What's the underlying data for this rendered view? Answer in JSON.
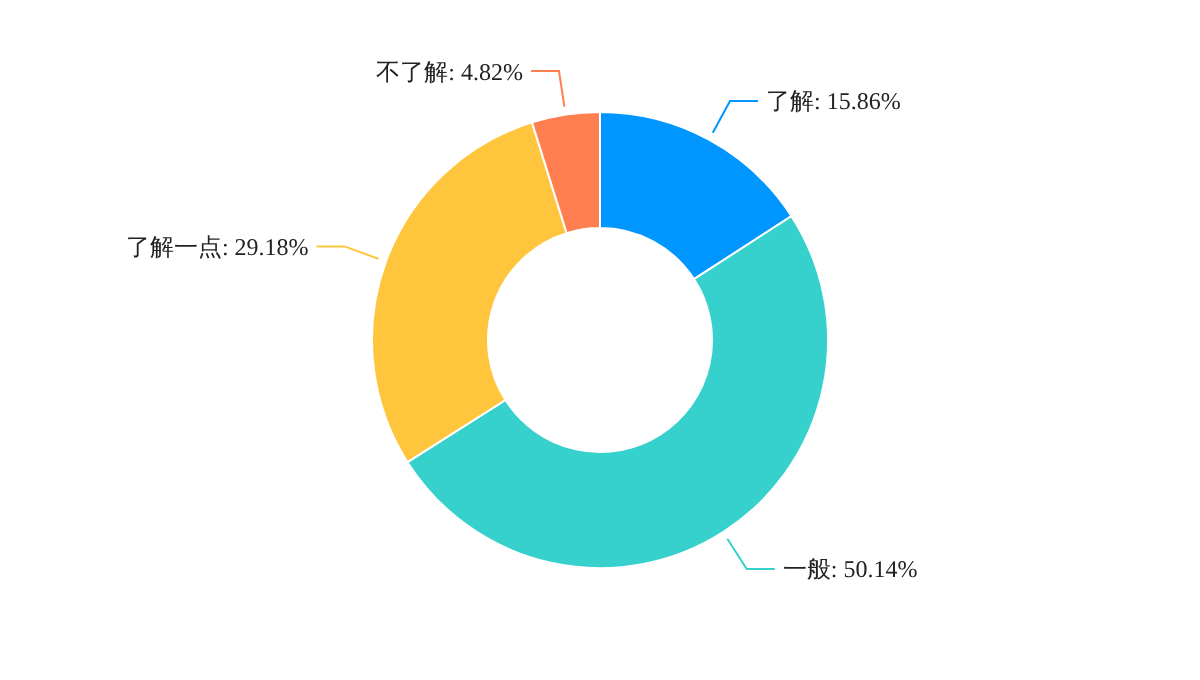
{
  "chart_data": {
    "type": "donut",
    "categories": [
      "了解",
      "一般",
      "了解一点",
      "不了解"
    ],
    "values": [
      15.86,
      50.14,
      29.18,
      4.82
    ],
    "value_labels": [
      "15.86%",
      "50.14%",
      "29.18%",
      "4.82%"
    ],
    "colors": [
      "#0096ff",
      "#36d1cd",
      "#ffc53d",
      "#ff7f50"
    ],
    "legend": false
  }
}
